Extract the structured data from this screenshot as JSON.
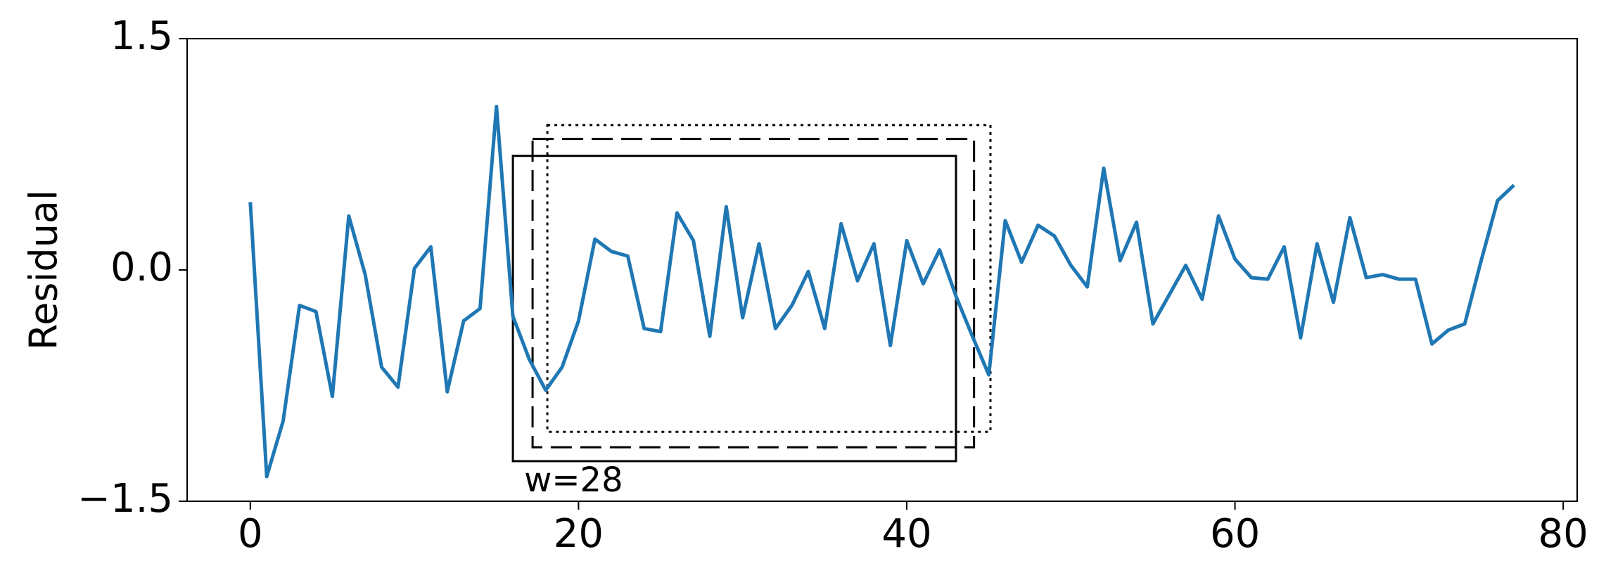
{
  "chart_data": {
    "type": "line",
    "y_label": "Residual",
    "x": [
      0,
      1,
      2,
      3,
      4,
      5,
      6,
      7,
      8,
      9,
      10,
      11,
      12,
      13,
      14,
      15,
      16,
      17,
      18,
      19,
      20,
      21,
      22,
      23,
      24,
      25,
      26,
      27,
      28,
      29,
      30,
      31,
      32,
      33,
      34,
      35,
      36,
      37,
      38,
      39,
      40,
      41,
      42,
      43,
      44,
      45,
      46,
      47,
      48,
      49,
      50,
      51,
      52,
      53,
      54,
      55,
      56,
      57,
      58,
      59,
      60,
      61,
      62,
      63,
      64,
      65,
      66,
      67,
      68,
      69,
      70,
      71,
      72,
      73,
      74,
      75,
      76,
      77
    ],
    "series": [
      {
        "color": "#1f77b4",
        "values": [
          0.44,
          -1.34,
          -0.98,
          -0.23,
          -0.27,
          -0.82,
          0.35,
          -0.03,
          -0.63,
          -0.76,
          0.01,
          0.15,
          -0.79,
          -0.33,
          -0.25,
          1.06,
          -0.3,
          -0.58,
          -0.78,
          -0.63,
          -0.33,
          0.2,
          0.12,
          0.09,
          -0.38,
          -0.4,
          0.37,
          0.19,
          -0.43,
          0.41,
          -0.31,
          0.17,
          -0.38,
          -0.23,
          -0.01,
          -0.38,
          0.3,
          -0.07,
          0.17,
          -0.49,
          0.19,
          -0.09,
          0.13,
          -0.17,
          -0.43,
          -0.68,
          0.32,
          0.05,
          0.29,
          0.22,
          0.03,
          -0.11,
          0.66,
          0.06,
          0.31,
          -0.35,
          -0.16,
          0.03,
          -0.19,
          0.35,
          0.07,
          -0.05,
          -0.06,
          0.15,
          -0.44,
          0.17,
          -0.21,
          0.34,
          -0.05,
          -0.03,
          -0.06,
          -0.06,
          -0.48,
          -0.39,
          -0.35,
          0.06,
          0.45,
          0.55
        ]
      }
    ],
    "windows": [
      {
        "style": "solid",
        "x": [
          16,
          43
        ],
        "y": [
          -1.24,
          0.74
        ]
      },
      {
        "style": "dashed",
        "x": [
          17.2,
          44.1
        ],
        "y": [
          -1.15,
          0.85
        ]
      },
      {
        "style": "dotted",
        "x": [
          18.1,
          45.1
        ],
        "y": [
          -1.05,
          0.94
        ]
      }
    ],
    "window_label": "w=28",
    "xlim": [
      -3.85,
      80.85
    ],
    "ylim": [
      -1.5,
      1.5
    ],
    "xticks": [
      0,
      20,
      40,
      60,
      80
    ],
    "yticks": [
      {
        "value": -1.5,
        "label": "−1.5"
      },
      {
        "value": 0,
        "label": "0.0"
      },
      1.5
    ],
    "grid": false
  }
}
